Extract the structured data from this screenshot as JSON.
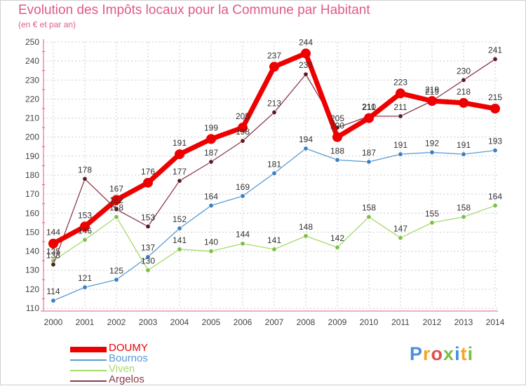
{
  "title": "Evolution des Impôts locaux pour la Commune par Habitant",
  "subtitle": "(en € et par an)",
  "logo": {
    "letters": [
      "P",
      "r",
      "o",
      "x",
      "i",
      "t",
      "i"
    ],
    "colors": [
      "#4a90d9",
      "#f5a623",
      "#e0504a",
      "#7bc043",
      "#4a90d9",
      "#f5a623",
      "#7bc043"
    ]
  },
  "chart_data": {
    "type": "line",
    "title": "Evolution des Impôts locaux pour la Commune par Habitant",
    "subtitle": "(en € et par an)",
    "x": [
      "2000",
      "2001",
      "2002",
      "2003",
      "2004",
      "2005",
      "2006",
      "2007",
      "2008",
      "2009",
      "2010",
      "2011",
      "2012",
      "2013",
      "2014"
    ],
    "ylim": [
      110,
      250
    ],
    "yticks": [
      "110",
      "120",
      "130",
      "140",
      "150",
      "160",
      "170",
      "180",
      "190",
      "200",
      "210",
      "220",
      "230",
      "240",
      "250"
    ],
    "grid": true,
    "legend_position": "bottom-left",
    "series": [
      {
        "name": "Bournos",
        "color": "#5a9bd5",
        "marker": "#3a7fc0",
        "values": [
          114,
          121,
          125,
          137,
          152,
          164,
          169,
          181,
          194,
          188,
          187,
          191,
          192,
          191,
          193
        ],
        "labels": [
          "114",
          "121",
          "125",
          "137",
          "152",
          "164",
          "169",
          "181",
          "194",
          "188",
          "187",
          "191",
          "192",
          "191",
          "193"
        ]
      },
      {
        "name": "Viven",
        "color": "#a6d96a",
        "marker": "#7bc043",
        "values": [
          135,
          146,
          158,
          130,
          141,
          140,
          144,
          141,
          148,
          142,
          158,
          147,
          155,
          158,
          164
        ],
        "labels": [
          "135",
          "146",
          "158",
          "130",
          "141",
          "140",
          "144",
          "141",
          "148",
          "142",
          "158",
          "147",
          "155",
          "158",
          "164"
        ]
      },
      {
        "name": "Argelos",
        "color": "#8b3a4a",
        "marker": "#5a1a22",
        "values": [
          133,
          178,
          162,
          153,
          177,
          187,
          198,
          213,
          233,
          205,
          211,
          211,
          219,
          230,
          241
        ],
        "labels": [
          "133",
          "178",
          "162",
          "153",
          "177",
          "187",
          "198",
          "213",
          "233",
          "205",
          "211",
          "211",
          "219",
          "230",
          "241"
        ]
      },
      {
        "name": "DOUMY",
        "color": "#ee0000",
        "marker": "#ee0000",
        "values": [
          144,
          153,
          167,
          176,
          191,
          199,
          205,
          237,
          244,
          200,
          210,
          223,
          219,
          218,
          215
        ],
        "labels": [
          "144",
          "153",
          "167",
          "176",
          "191",
          "199",
          "205",
          "237",
          "244",
          "200",
          "210",
          "223",
          "219",
          "218",
          "215"
        ]
      }
    ]
  }
}
